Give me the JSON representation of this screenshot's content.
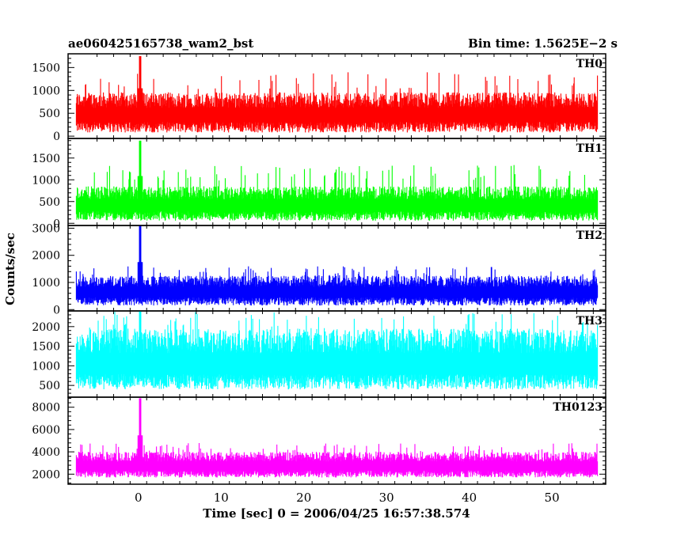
{
  "header": {
    "title": "ae060425165738_wam2_bst",
    "bin_time": "Bin time: 1.5625E−2 s"
  },
  "chart_data": {
    "type": "line",
    "xlabel": "Time [sec] 0 = 2006/04/25 16:57:38.574",
    "ylabel": "Counts/sec",
    "xlim": [
      -8.5,
      56.5
    ],
    "x_ticks": [
      0,
      10,
      20,
      30,
      40,
      50
    ],
    "panels": [
      {
        "name": "TH0",
        "color": "#ff0000",
        "ylim": [
          -50,
          1800
        ],
        "y_ticks": [
          0,
          500,
          1000,
          1500
        ],
        "data_x_range": [
          -7.5,
          55.5
        ],
        "baseline": 470,
        "noise_low": 80,
        "noise_high": 960,
        "peak": {
          "x": 0.2,
          "y": 1750
        },
        "occasional_max": 1400
      },
      {
        "name": "TH1",
        "color": "#00ff00",
        "ylim": [
          -50,
          1950
        ],
        "y_ticks": [
          0,
          500,
          1000,
          1500
        ],
        "data_x_range": [
          -7.5,
          55.5
        ],
        "baseline": 420,
        "noise_low": 60,
        "noise_high": 850,
        "peak": {
          "x": 0.2,
          "y": 1900
        },
        "occasional_max": 1350
      },
      {
        "name": "TH2",
        "color": "#0000ff",
        "ylim": [
          -50,
          3100
        ],
        "y_ticks": [
          0,
          1000,
          2000,
          3000
        ],
        "data_x_range": [
          -7.5,
          55.5
        ],
        "baseline": 650,
        "noise_low": 150,
        "noise_high": 1250,
        "peak": {
          "x": 0.2,
          "y": 3100
        },
        "occasional_max": 1600
      },
      {
        "name": "TH3",
        "color": "#00ffff",
        "ylim": [
          200,
          2400
        ],
        "y_ticks": [
          500,
          1000,
          1500,
          2000
        ],
        "data_x_range": [
          -7.5,
          55.5
        ],
        "baseline": 1050,
        "noise_low": 400,
        "noise_high": 1950,
        "peak": {
          "x": 0.2,
          "y": 2400
        },
        "occasional_max": 2400
      },
      {
        "name": "TH0123",
        "color": "#ff00ff",
        "ylim": [
          1100,
          8900
        ],
        "y_ticks": [
          2000,
          4000,
          6000,
          8000
        ],
        "data_x_range": [
          -7.5,
          55.5
        ],
        "baseline": 2750,
        "noise_low": 1700,
        "noise_high": 4000,
        "peak": {
          "x": 0.2,
          "y": 8800
        },
        "occasional_max": 4800
      }
    ]
  }
}
